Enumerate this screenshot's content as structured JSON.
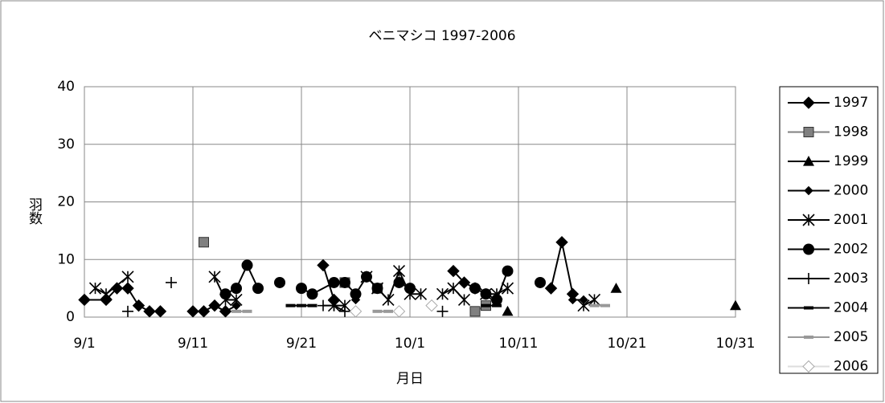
{
  "chart_data": {
    "type": "line",
    "title": "ベニマシコ 1997-2006",
    "xlabel": "月日",
    "ylabel": "羽数",
    "xlim": [
      "9/1",
      "10/31"
    ],
    "xticks": [
      "9/1",
      "9/11",
      "9/21",
      "10/1",
      "10/11",
      "10/21",
      "10/31"
    ],
    "ylim": [
      0,
      40
    ],
    "yticks": [
      0,
      10,
      20,
      30,
      40
    ],
    "grid": true,
    "legend": "right",
    "series": [
      {
        "name": "1997",
        "color": "#000000",
        "marker": "diamond",
        "x": [
          "9/1",
          "9/3",
          "9/4",
          "9/5",
          "9/6",
          "9/7",
          "9/8",
          "9/9",
          "9/11",
          "9/12",
          "9/13",
          "9/14",
          "9/15",
          "9/23",
          "9/24",
          "9/25",
          "10/5",
          "10/6",
          "10/7",
          "10/8",
          "10/14",
          "10/15",
          "10/16"
        ],
        "values": [
          3,
          3,
          5,
          5,
          2,
          1,
          1,
          null,
          1,
          1,
          2,
          1,
          null,
          9,
          3,
          null,
          8,
          6,
          5,
          null,
          5,
          13,
          4
        ]
      },
      {
        "name": "1998",
        "color": "#808080",
        "marker": "square",
        "x": [
          "9/12",
          "9/13",
          "9/25",
          "9/26",
          "9/28",
          "9/29",
          "10/7",
          "10/8"
        ],
        "values": [
          13,
          null,
          6,
          null,
          5,
          null,
          1,
          2
        ]
      },
      {
        "name": "1999",
        "color": "#000000",
        "marker": "triangle",
        "x": [
          "10/10",
          "10/11",
          "10/20",
          "10/21",
          "10/31"
        ],
        "values": [
          1,
          null,
          5,
          null,
          2
        ]
      },
      {
        "name": "2000",
        "color": "#000000",
        "marker": "smalldiamond",
        "x": [
          "9/13",
          "9/14",
          "9/15",
          "9/16",
          "9/26",
          "9/27",
          "10/16",
          "10/17"
        ],
        "values": [
          2,
          1,
          2,
          null,
          3,
          null,
          3,
          3
        ]
      },
      {
        "name": "2001",
        "color": "#000000",
        "marker": "asterisk",
        "x": [
          "9/2",
          "9/3",
          "9/5",
          "9/6",
          "9/13",
          "9/14",
          "9/15",
          "9/16",
          "9/24",
          "9/25",
          "9/26",
          "9/27",
          "9/28",
          "9/29",
          "9/30",
          "10/1",
          "10/2",
          "10/3",
          "10/4",
          "10/5",
          "10/6",
          "10/7",
          "10/8",
          "10/9",
          "10/10",
          "10/11",
          "10/17",
          "10/18"
        ],
        "values": [
          5,
          4,
          7,
          null,
          7,
          3,
          3,
          null,
          2,
          2,
          null,
          7,
          5,
          3,
          8,
          4,
          4,
          null,
          4,
          5,
          3,
          null,
          4,
          4,
          5,
          null,
          2,
          3
        ]
      },
      {
        "name": "2002",
        "color": "#000000",
        "marker": "circle",
        "x": [
          "9/14",
          "9/15",
          "9/16",
          "9/17",
          "9/18",
          "9/19",
          "9/20",
          "9/21",
          "9/22",
          "9/24",
          "9/25",
          "9/26",
          "9/27",
          "9/28",
          "9/29",
          "9/30",
          "10/1",
          "10/2",
          "10/7",
          "10/8",
          "10/9",
          "10/10",
          "10/11",
          "10/13"
        ],
        "values": [
          4,
          5,
          9,
          5,
          null,
          6,
          null,
          5,
          4,
          6,
          6,
          4,
          7,
          5,
          null,
          6,
          5,
          null,
          5,
          4,
          3,
          8,
          null,
          6
        ]
      },
      {
        "name": "2003",
        "color": "#000000",
        "marker": "plus",
        "x": [
          "9/5",
          "9/6",
          "9/9",
          "9/10",
          "9/23",
          "9/24",
          "9/25",
          "10/3",
          "10/4"
        ],
        "values": [
          1,
          null,
          6,
          null,
          2,
          2,
          1,
          null,
          1
        ]
      },
      {
        "name": "2004",
        "color": "#000000",
        "marker": "dash",
        "x": [
          "9/20",
          "9/21",
          "9/22",
          "9/23",
          "10/8",
          "10/9"
        ],
        "values": [
          2,
          2,
          2,
          null,
          2,
          2
        ]
      },
      {
        "name": "2005",
        "color": "#999999",
        "marker": "dash",
        "x": [
          "9/15",
          "9/16",
          "9/17",
          "9/28",
          "9/29",
          "9/30",
          "10/18",
          "10/19"
        ],
        "values": [
          1,
          1,
          null,
          1,
          1,
          null,
          2,
          2
        ]
      },
      {
        "name": "2006",
        "color": "#ffffff",
        "marker": "diamond",
        "x": [
          "9/26",
          "9/27",
          "9/30",
          "10/1",
          "10/3"
        ],
        "values": [
          1,
          null,
          1,
          null,
          2
        ]
      }
    ]
  }
}
